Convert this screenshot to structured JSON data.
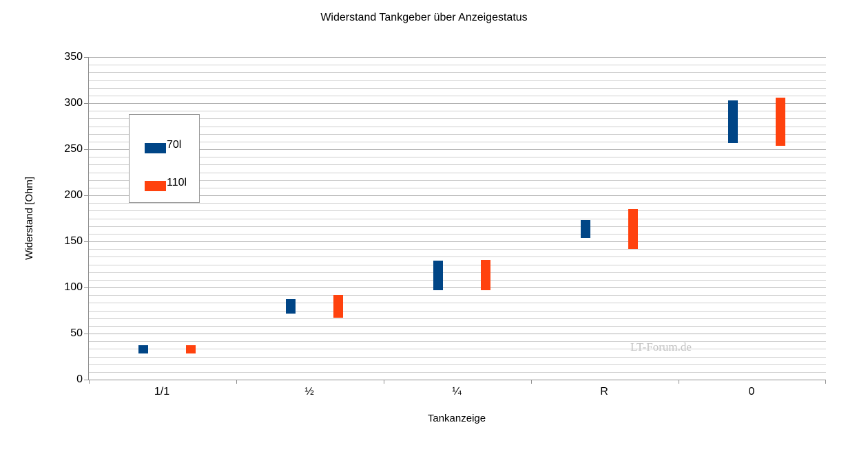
{
  "chart": {
    "title": "Widerstand Tankgeber über Anzeigestatus",
    "watermark": "LT-Forum.de"
  },
  "chart_data": {
    "type": "bar",
    "subtype": "floating_range_columns",
    "title": "Widerstand Tankgeber über Anzeigestatus",
    "xlabel": "Tankanzeige",
    "ylabel": "Widerstand [Ohm]",
    "categories": [
      "1/1",
      "½",
      "¼",
      "R",
      "0"
    ],
    "series": [
      {
        "name": "70l",
        "color": "#004586",
        "ranges_ohm": [
          [
            28,
            37
          ],
          [
            72,
            87
          ],
          [
            97,
            129
          ],
          [
            154,
            173
          ],
          [
            257,
            303
          ]
        ]
      },
      {
        "name": "110l",
        "color": "#ff420e",
        "ranges_ohm": [
          [
            28,
            37
          ],
          [
            67,
            92
          ],
          [
            97,
            130
          ],
          [
            142,
            185
          ],
          [
            254,
            306
          ]
        ]
      }
    ],
    "ylim": [
      0,
      350
    ],
    "y_ticks": [
      0,
      50,
      100,
      150,
      200,
      250,
      300,
      350
    ],
    "y_major_step": 50,
    "y_minor_divisions": 6,
    "grid": true,
    "legend_position": "inside top-left"
  },
  "colors": {
    "series_70l": "#004586",
    "series_110l": "#ff420e",
    "gridline_major": "#b3b3b3",
    "gridline_minor": "#cfcfcf",
    "axis": "#8f8f8f",
    "watermark": "#c3c3c3",
    "background": "#ffffff",
    "text": "#000000"
  }
}
